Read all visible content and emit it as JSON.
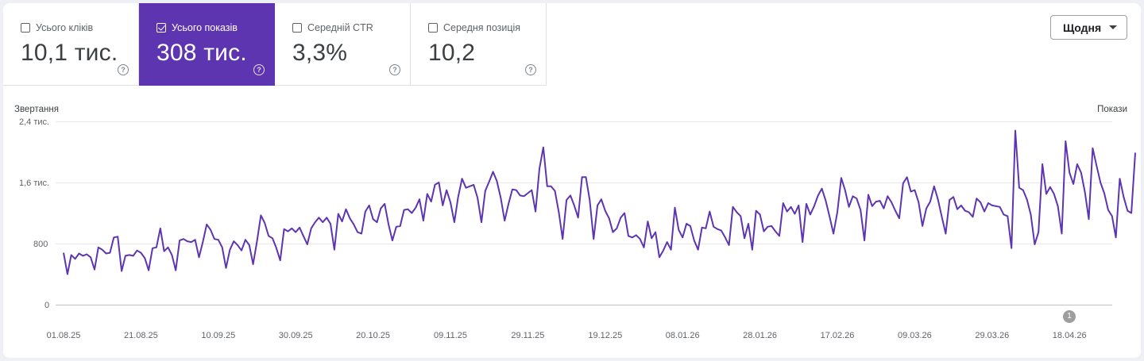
{
  "metrics": [
    {
      "label": "Усього кліків",
      "value": "10,1 тис.",
      "checked": false
    },
    {
      "label": "Усього показів",
      "value": "308 тис.",
      "checked": true
    },
    {
      "label": "Середній CTR",
      "value": "3,3%",
      "checked": false
    },
    {
      "label": "Середня позиція",
      "value": "10,2",
      "checked": false
    }
  ],
  "help_glyph": "?",
  "period_dropdown": {
    "label": "Щодня"
  },
  "colors": {
    "accent": "#5e35b1",
    "line": "#5e35b1"
  },
  "chart_data": {
    "type": "line",
    "left_axis_title": "Звертання",
    "right_axis_title": "Покази",
    "y_tick_labels": [
      "2,4 тис.",
      "1,6 тис.",
      "800",
      "0"
    ],
    "ylim": [
      0,
      2400
    ],
    "grid": true,
    "x_tick_labels": [
      "01.08.25",
      "21.08.25",
      "10.09.25",
      "30.09.25",
      "20.10.25",
      "09.11.25",
      "29.11.25",
      "19.12.25",
      "08.01.26",
      "28.01.26",
      "17.02.26",
      "09.03.26",
      "29.03.26",
      "18.04.26"
    ],
    "x_range": [
      "01.08.25",
      "04.05.26"
    ],
    "annotation": {
      "label": "1",
      "date": "22.04.26"
    },
    "series": [
      {
        "values": [
          680,
          400,
          650,
          600,
          670,
          640,
          660,
          620,
          460,
          750,
          720,
          670,
          680,
          880,
          890,
          440,
          640,
          650,
          640,
          710,
          680,
          610,
          450,
          740,
          750,
          1000,
          700,
          750,
          650,
          450,
          840,
          860,
          830,
          820,
          850,
          620,
          820,
          1050,
          980,
          860,
          850,
          750,
          480,
          720,
          830,
          780,
          710,
          850,
          780,
          530,
          830,
          1170,
          1070,
          900,
          870,
          740,
          580,
          990,
          960,
          1000,
          950,
          1010,
          900,
          790,
          1000,
          1080,
          1140,
          1080,
          1140,
          1060,
          720,
          1190,
          1090,
          1250,
          1130,
          1050,
          950,
          930,
          1220,
          1300,
          1120,
          1080,
          1260,
          1320,
          1050,
          840,
          1020,
          1030,
          1240,
          1250,
          1200,
          1270,
          1380,
          1100,
          1450,
          1350,
          1570,
          1600,
          1300,
          1500,
          1340,
          1080,
          1410,
          1650,
          1530,
          1550,
          1570,
          1400,
          1080,
          1490,
          1610,
          1740,
          1620,
          1400,
          1100,
          1320,
          1510,
          1500,
          1430,
          1420,
          1460,
          1500,
          1220,
          1780,
          2060,
          1550,
          1550,
          1490,
          1210,
          860,
          1370,
          1430,
          1300,
          1140,
          1670,
          1670,
          1370,
          860,
          1300,
          1380,
          1230,
          1130,
          950,
          1000,
          1140,
          1200,
          900,
          880,
          910,
          860,
          750,
          1090,
          870,
          950,
          620,
          710,
          820,
          720,
          1270,
          980,
          880,
          1060,
          1030,
          840,
          720,
          1010,
          1000,
          1220,
          1020,
          990,
          970,
          880,
          780,
          1280,
          1210,
          1160,
          870,
          1060,
          720,
          1230,
          1180,
          960,
          1020,
          1030,
          960,
          900,
          1330,
          1220,
          1280,
          1190,
          1300,
          820,
          1320,
          1180,
          1290,
          1430,
          1520,
          1360,
          1150,
          930,
          1210,
          1660,
          1500,
          1280,
          1420,
          1390,
          1240,
          840,
          1440,
          1290,
          1350,
          1360,
          1260,
          1420,
          1340,
          1230,
          1130,
          1590,
          1670,
          1480,
          1500,
          1340,
          1030,
          1260,
          1350,
          1550,
          1380,
          1150,
          930,
          1370,
          1410,
          1250,
          1300,
          1230,
          1210,
          1150,
          1390,
          1340,
          1220,
          1330,
          1300,
          1290,
          1280,
          1180,
          1160,
          740,
          2280,
          1530,
          1500,
          1380,
          1180,
          790,
          950,
          1840,
          1450,
          1540,
          1450,
          1290,
          930,
          2140,
          1730,
          1580,
          1840,
          1730,
          1470,
          1120,
          2050,
          1820,
          1600,
          1460,
          1240,
          1160,
          880,
          1650,
          1410,
          1230,
          1200,
          1990
        ]
      }
    ]
  }
}
